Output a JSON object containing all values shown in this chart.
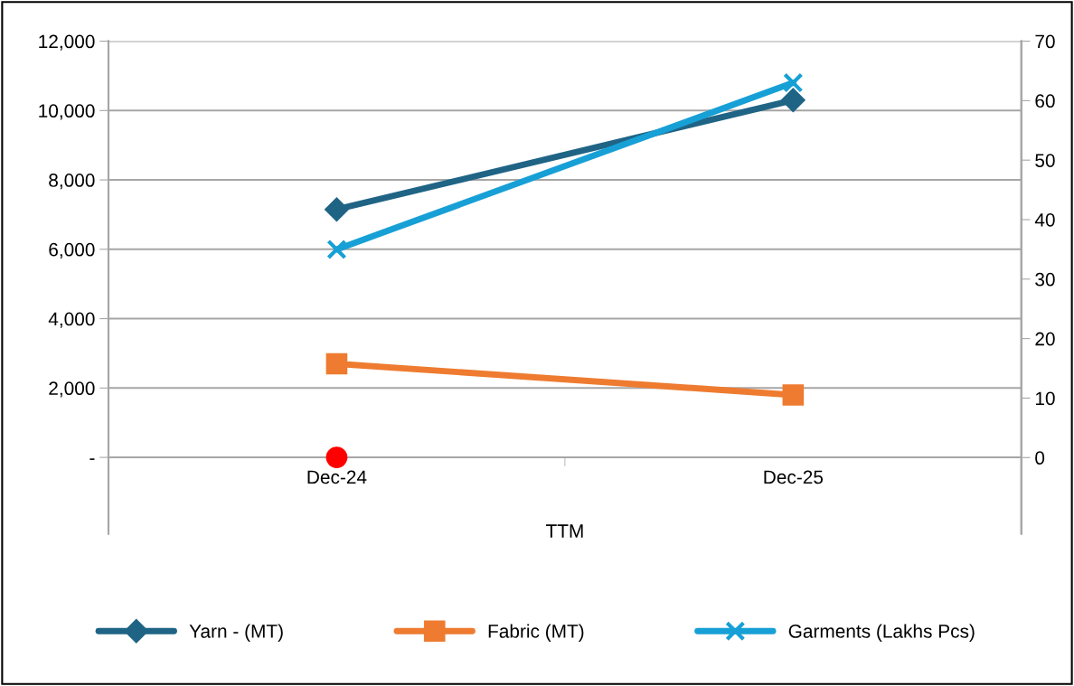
{
  "chart_data": {
    "type": "line",
    "categories": [
      "Dec-24",
      "Dec-25"
    ],
    "xlabel": "TTM",
    "ylim": [
      -2200,
      12000
    ],
    "yticks": [
      {
        "value": 0,
        "label": "-"
      },
      {
        "value": 2000,
        "label": "2,000"
      },
      {
        "value": 4000,
        "label": "4,000"
      },
      {
        "value": 6000,
        "label": "6,000"
      },
      {
        "value": 8000,
        "label": "8,000"
      },
      {
        "value": 10000,
        "label": "10,000"
      },
      {
        "value": 12000,
        "label": "12,000"
      }
    ],
    "y2lim": [
      -12.8,
      70
    ],
    "y2ticks": [
      0,
      10,
      20,
      30,
      40,
      50,
      60,
      70
    ],
    "grid": "y",
    "legend": "bottom",
    "series": [
      {
        "name": "Yarn - (MT)",
        "color": "#1f6485",
        "marker": "diamond",
        "values": [
          7150,
          10300
        ]
      },
      {
        "name": "Fabric (MT)",
        "color": "#ee7b30",
        "marker": "square",
        "values": [
          2700,
          1800
        ]
      },
      {
        "name": "Garments (Lakhs Pcs)",
        "color": "#17a0d6",
        "marker": "cross",
        "axis": "y2",
        "values": [
          35,
          63
        ]
      },
      {
        "type": "scatter",
        "color": "#ff0000",
        "marker": "circle",
        "values": [
          0,
          null
        ]
      }
    ]
  }
}
